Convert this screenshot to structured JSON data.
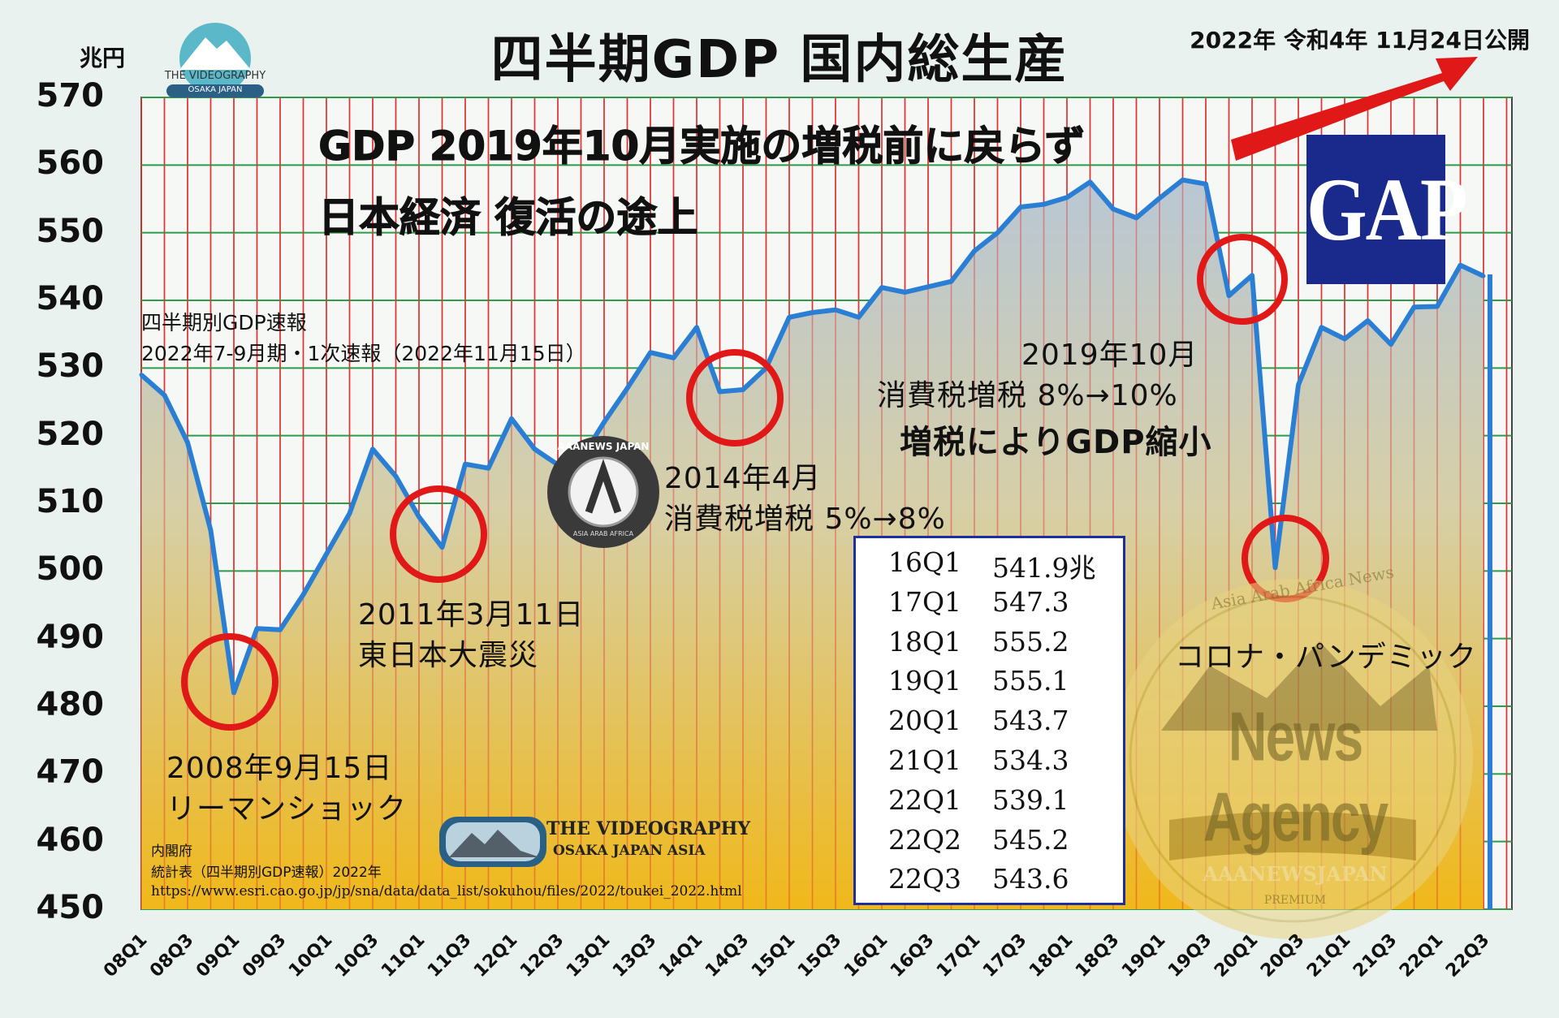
{
  "title": "四半期GDP 国内総生産",
  "published": "2022年 令和4年 11月24日公開",
  "unit": "兆円",
  "headline": [
    "GDP 2019年10月実施の増税前に戻らず",
    "日本経済 復活の途上"
  ],
  "source_note": [
    "四半期別GDP速報",
    "2022年7-9月期・1次速報（2022年11月15日）"
  ],
  "annotations": {
    "lehman": [
      "2008年9月15日",
      "リーマンショック"
    ],
    "quake": [
      "2011年3月11日",
      "東日本大震災"
    ],
    "tax2014": [
      "2014年4月",
      "消費税増税 5%→8%"
    ],
    "tax2019": [
      "2019年10月",
      "消費税増税 8%→10%",
      "増税によりGDP縮小"
    ],
    "corona": "コロナ・パンデミック"
  },
  "gap_label": "GAP",
  "table": [
    {
      "q": "16Q1",
      "v": "541.9兆"
    },
    {
      "q": "17Q1",
      "v": "547.3"
    },
    {
      "q": "18Q1",
      "v": "555.2"
    },
    {
      "q": "19Q1",
      "v": "555.1"
    },
    {
      "q": "20Q1",
      "v": "543.7"
    },
    {
      "q": "21Q1",
      "v": "534.3"
    },
    {
      "q": "22Q1",
      "v": "539.1"
    },
    {
      "q": "22Q2",
      "v": "545.2"
    },
    {
      "q": "22Q3",
      "v": "543.6"
    }
  ],
  "footer": {
    "gov": "内閣府",
    "stat": "統計表（四半期別GDP速報）2022年",
    "url": "https://www.esri.cao.go.jp/jp/sna/data/data_list/sokuhou/files/2022/toukei_2022.html"
  },
  "logos": {
    "videography_top": "THE VIDEOGRAPHY",
    "videography_top_sub": "OSAKA JAPAN",
    "videography_bottom": "THE VIDEOGRAPHY",
    "videography_bottom_sub": "OSAKA JAPAN ASIA",
    "aaanews": "AAANEWS JAPAN",
    "aaanews_sub": "ASIA ARAB AFRICA",
    "watermark_main": "News Agency",
    "watermark_ring": "Asia Arab Africa News",
    "watermark_banner": "AAANEWSJAPAN",
    "watermark_premium": "PREMIUM"
  },
  "colors": {
    "line": "#2a7fd4",
    "grid_v": "#e03030",
    "grid_h": "#2e9a4a",
    "circle": "#e01818",
    "arrow": "#e01818",
    "fill_top": "#b9c7d4",
    "fill_bottom": "#f0b81a"
  },
  "chart_data": {
    "type": "area",
    "ylim": [
      450,
      570
    ],
    "yticks": [
      450,
      460,
      470,
      480,
      490,
      500,
      510,
      520,
      530,
      540,
      550,
      560,
      570
    ],
    "xtick_labels": [
      "08Q1",
      "08Q3",
      "09Q1",
      "09Q3",
      "10Q1",
      "10Q3",
      "11Q1",
      "11Q3",
      "12Q1",
      "12Q3",
      "13Q1",
      "13Q3",
      "14Q1",
      "14Q3",
      "15Q1",
      "15Q3",
      "16Q1",
      "16Q3",
      "17Q1",
      "17Q3",
      "18Q1",
      "18Q3",
      "19Q1",
      "19Q3",
      "20Q1",
      "20Q3",
      "21Q1",
      "21Q3",
      "22Q1",
      "22Q3"
    ],
    "x": [
      "08Q1",
      "08Q2",
      "08Q3",
      "08Q4",
      "09Q1",
      "09Q2",
      "09Q3",
      "09Q4",
      "10Q1",
      "10Q2",
      "10Q3",
      "10Q4",
      "11Q1",
      "11Q2",
      "11Q3",
      "11Q4",
      "12Q1",
      "12Q2",
      "12Q3",
      "12Q4",
      "13Q1",
      "13Q2",
      "13Q3",
      "13Q4",
      "14Q1",
      "14Q2",
      "14Q3",
      "14Q4",
      "15Q1",
      "15Q2",
      "15Q3",
      "15Q4",
      "16Q1",
      "16Q2",
      "16Q3",
      "16Q4",
      "17Q1",
      "17Q2",
      "17Q3",
      "17Q4",
      "18Q1",
      "18Q2",
      "18Q3",
      "18Q4",
      "19Q1",
      "19Q2",
      "19Q3",
      "19Q4",
      "20Q1",
      "20Q2",
      "20Q3",
      "20Q4",
      "21Q1",
      "21Q2",
      "21Q3",
      "21Q4",
      "22Q1",
      "22Q2",
      "22Q3"
    ],
    "y": [
      529,
      526,
      519,
      506,
      482,
      491.5,
      491.3,
      496.5,
      502.5,
      508.5,
      518,
      514,
      508,
      503.5,
      515.8,
      515.2,
      522.5,
      518,
      515.7,
      516.5,
      522,
      527,
      532.3,
      531.5,
      536,
      526.5,
      526.8,
      530,
      537.5,
      538.2,
      538.6,
      537.5,
      541.9,
      541.2,
      542,
      542.8,
      547.3,
      550,
      553.8,
      554.2,
      555.2,
      557.5,
      553.5,
      552.2,
      555.1,
      557.8,
      557.2,
      540.7,
      543.7,
      500.5,
      527.5,
      536,
      534.3,
      537,
      533.5,
      539,
      539.1,
      545.2,
      543.6
    ]
  }
}
